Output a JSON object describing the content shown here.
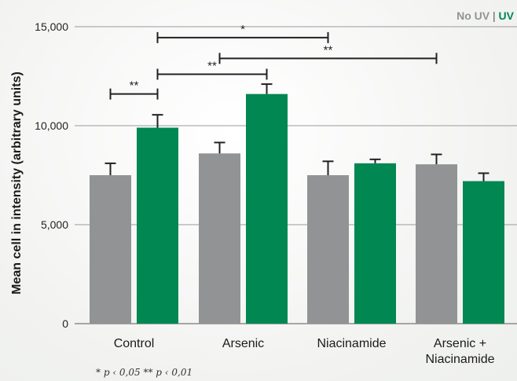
{
  "chart_data": {
    "type": "bar",
    "ylabel": "Mean cell in intensity (arbitrary units)",
    "ylim": [
      0,
      15000
    ],
    "yticks": [
      0,
      5000,
      10000,
      15000
    ],
    "ytick_labels": [
      "0",
      "5,000",
      "10,000",
      "15,000"
    ],
    "categories": [
      "Control",
      "Arsenic",
      "Niacinamide",
      "Arsenic +\nNiacinamide"
    ],
    "series": [
      {
        "name": "No UV",
        "color": "#929394",
        "values": [
          7500,
          8600,
          7500,
          8050
        ],
        "errors": [
          600,
          550,
          700,
          500
        ]
      },
      {
        "name": "UV",
        "color": "#008752",
        "values": [
          9900,
          11600,
          8100,
          7200
        ],
        "errors": [
          650,
          500,
          200,
          400
        ]
      }
    ],
    "legend_position": "top-right",
    "legend_separator": "|",
    "significance": [
      {
        "from_category": 0,
        "from_series": 0,
        "to_category": 0,
        "to_series": 1,
        "y": 11600,
        "label": "**"
      },
      {
        "from_category": 0,
        "from_series": 1,
        "to_category": 1,
        "to_series": 1,
        "y": 12600,
        "label": "**"
      },
      {
        "from_category": 0,
        "from_series": 1,
        "to_category": 2,
        "to_series": 0,
        "y": 14450,
        "label": "*"
      },
      {
        "from_category": 1,
        "from_series": 0,
        "to_category": 3,
        "to_series": 0,
        "y": 13400,
        "label": "**"
      }
    ],
    "footnote": "* p ‹ 0,05   ** p ‹ 0,01",
    "grid": true
  }
}
